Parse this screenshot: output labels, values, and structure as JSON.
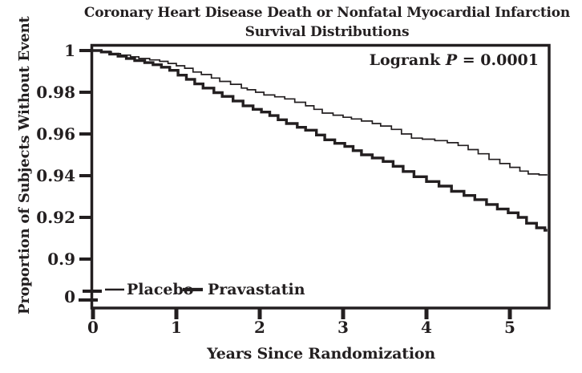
{
  "title": {
    "line1": "Coronary Heart Disease Death or Nonfatal Myocardial Infarction",
    "line2": "Survival Distributions"
  },
  "annotation": {
    "prefix": "Logrank ",
    "p_symbol": "P",
    "suffix": " = 0.0001"
  },
  "axes": {
    "y": {
      "label": "Proportion of Subjects Without Event",
      "ticks": [
        "1",
        "0.98",
        "0.96",
        "0.94",
        "0.92",
        "0.9",
        "0"
      ]
    },
    "x": {
      "label": "Years Since Randomization",
      "ticks": [
        "0",
        "1",
        "2",
        "3",
        "4",
        "5"
      ]
    }
  },
  "legend": [
    {
      "name": "Placebo",
      "weight": "thin"
    },
    {
      "name": "Pravastatin",
      "weight": "thick"
    }
  ],
  "colors": {
    "ink": "#231f20",
    "background": "#ffffff"
  },
  "chart_data": {
    "type": "line",
    "subtype": "kaplan-meier-step",
    "title": "Coronary Heart Disease Death or Nonfatal Myocardial Infarction Survival Distributions",
    "xlabel": "Years Since Randomization",
    "ylabel": "Proportion of Subjects Without Event",
    "annotation": "Logrank P = 0.0001",
    "xlim": [
      0,
      5.47
    ],
    "ylim_main": [
      0.9,
      1.0
    ],
    "y_axis_break_to_zero": true,
    "x_ticks": [
      0,
      1,
      2,
      3,
      4,
      5
    ],
    "y_ticks": [
      1,
      0.98,
      0.96,
      0.94,
      0.92,
      0.9,
      0
    ],
    "grid": false,
    "legend_position": "bottom-left-inside",
    "series": [
      {
        "name": "Placebo",
        "style": "thin",
        "end_value": 0.94,
        "points": [
          [
            0,
            1.0
          ],
          [
            0.1,
            0.9995
          ],
          [
            0.22,
            0.9985
          ],
          [
            0.33,
            0.9978
          ],
          [
            0.45,
            0.997
          ],
          [
            0.55,
            0.9962
          ],
          [
            0.68,
            0.9955
          ],
          [
            0.8,
            0.9948
          ],
          [
            0.9,
            0.9938
          ],
          [
            1.0,
            0.9927
          ],
          [
            1.1,
            0.9915
          ],
          [
            1.2,
            0.9897
          ],
          [
            1.3,
            0.9885
          ],
          [
            1.42,
            0.9868
          ],
          [
            1.52,
            0.9852
          ],
          [
            1.65,
            0.9838
          ],
          [
            1.78,
            0.982
          ],
          [
            1.85,
            0.9812
          ],
          [
            1.95,
            0.98
          ],
          [
            2.05,
            0.9787
          ],
          [
            2.18,
            0.9778
          ],
          [
            2.3,
            0.9768
          ],
          [
            2.42,
            0.9752
          ],
          [
            2.55,
            0.9735
          ],
          [
            2.65,
            0.9718
          ],
          [
            2.75,
            0.97
          ],
          [
            2.88,
            0.969
          ],
          [
            3.0,
            0.968
          ],
          [
            3.1,
            0.9672
          ],
          [
            3.22,
            0.9662
          ],
          [
            3.35,
            0.965
          ],
          [
            3.45,
            0.9638
          ],
          [
            3.58,
            0.9622
          ],
          [
            3.7,
            0.96
          ],
          [
            3.82,
            0.958
          ],
          [
            3.95,
            0.9575
          ],
          [
            4.1,
            0.9568
          ],
          [
            4.25,
            0.9558
          ],
          [
            4.38,
            0.9545
          ],
          [
            4.5,
            0.9525
          ],
          [
            4.62,
            0.9505
          ],
          [
            4.75,
            0.9478
          ],
          [
            4.88,
            0.9458
          ],
          [
            5.0,
            0.944
          ],
          [
            5.12,
            0.9422
          ],
          [
            5.22,
            0.9408
          ],
          [
            5.35,
            0.9404
          ]
        ]
      },
      {
        "name": "Pravastatin",
        "style": "thick",
        "end_value": 0.914,
        "points": [
          [
            0,
            1.0
          ],
          [
            0.1,
            0.9993
          ],
          [
            0.2,
            0.9983
          ],
          [
            0.3,
            0.9973
          ],
          [
            0.4,
            0.9962
          ],
          [
            0.5,
            0.9952
          ],
          [
            0.62,
            0.9942
          ],
          [
            0.72,
            0.9932
          ],
          [
            0.82,
            0.992
          ],
          [
            0.92,
            0.9905
          ],
          [
            1.02,
            0.9882
          ],
          [
            1.12,
            0.9862
          ],
          [
            1.22,
            0.984
          ],
          [
            1.32,
            0.982
          ],
          [
            1.45,
            0.9798
          ],
          [
            1.55,
            0.978
          ],
          [
            1.68,
            0.9758
          ],
          [
            1.8,
            0.9735
          ],
          [
            1.92,
            0.9718
          ],
          [
            2.02,
            0.9705
          ],
          [
            2.12,
            0.9688
          ],
          [
            2.22,
            0.9668
          ],
          [
            2.32,
            0.965
          ],
          [
            2.45,
            0.9632
          ],
          [
            2.55,
            0.9618
          ],
          [
            2.68,
            0.9595
          ],
          [
            2.78,
            0.9572
          ],
          [
            2.9,
            0.9555
          ],
          [
            3.02,
            0.954
          ],
          [
            3.12,
            0.952
          ],
          [
            3.22,
            0.95
          ],
          [
            3.35,
            0.9485
          ],
          [
            3.48,
            0.9468
          ],
          [
            3.6,
            0.9445
          ],
          [
            3.72,
            0.942
          ],
          [
            3.85,
            0.9395
          ],
          [
            4.0,
            0.9372
          ],
          [
            4.15,
            0.935
          ],
          [
            4.3,
            0.9325
          ],
          [
            4.45,
            0.9305
          ],
          [
            4.58,
            0.9285
          ],
          [
            4.72,
            0.9262
          ],
          [
            4.85,
            0.924
          ],
          [
            4.98,
            0.9222
          ],
          [
            5.1,
            0.92
          ],
          [
            5.2,
            0.9172
          ],
          [
            5.32,
            0.915
          ],
          [
            5.42,
            0.9138
          ]
        ]
      }
    ]
  }
}
